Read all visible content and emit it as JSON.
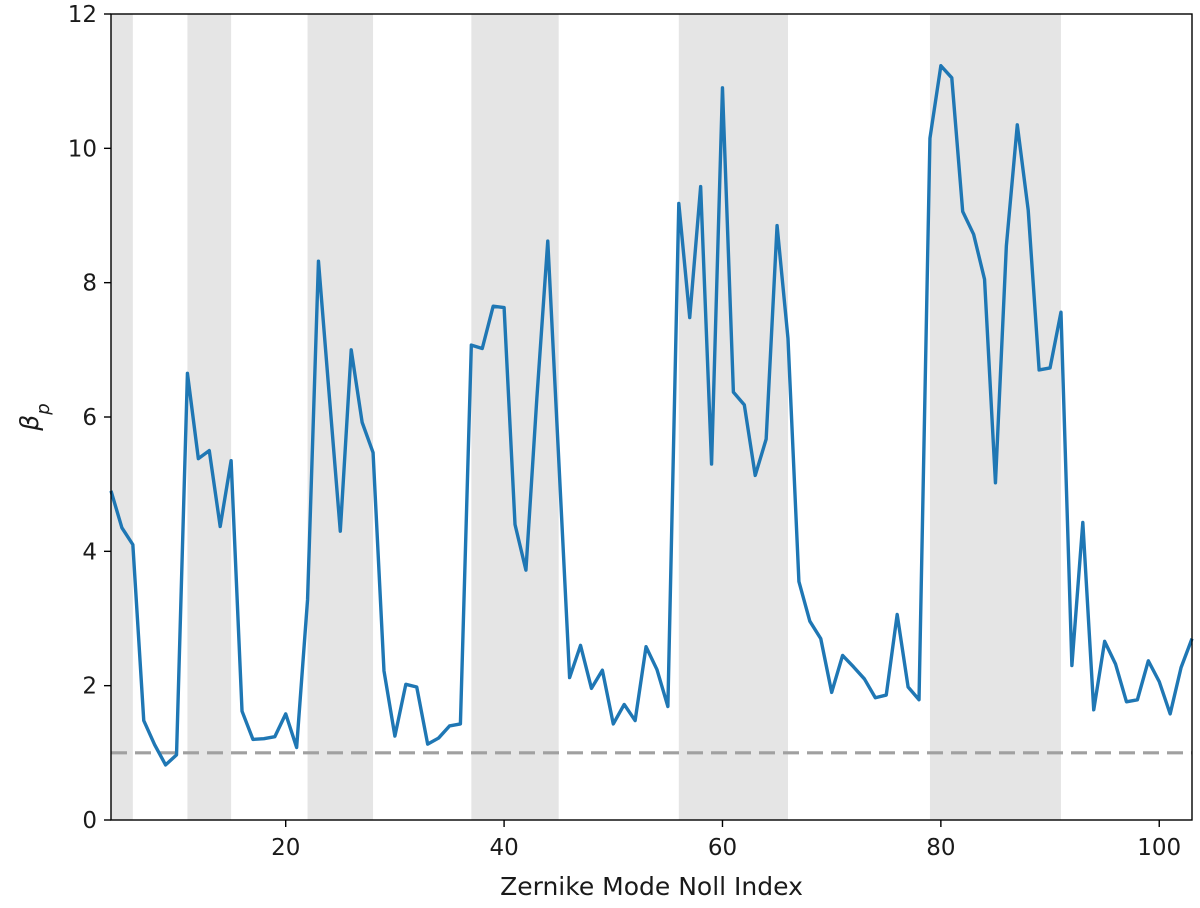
{
  "chart_data": {
    "type": "line",
    "xlabel": "Zernike Mode Noll Index",
    "ylabel": "β",
    "ylabel_subscript": "p",
    "xlim": [
      4,
      103
    ],
    "ylim": [
      0,
      12
    ],
    "xticks": [
      20,
      40,
      60,
      80,
      100
    ],
    "yticks": [
      0,
      2,
      4,
      6,
      8,
      10,
      12
    ],
    "grid": false,
    "reference_line": {
      "y": 1,
      "style": "dashed",
      "color": "#a0a0a0"
    },
    "shaded_x_ranges": [
      [
        4,
        6
      ],
      [
        11,
        15
      ],
      [
        22,
        28
      ],
      [
        37,
        45
      ],
      [
        56,
        66
      ],
      [
        79,
        91
      ]
    ],
    "shade_color": "#e5e5e5",
    "series": [
      {
        "color": "#1f77b4",
        "x": [
          4,
          5,
          6,
          7,
          8,
          9,
          10,
          11,
          12,
          13,
          14,
          15,
          16,
          17,
          18,
          19,
          20,
          21,
          22,
          23,
          24,
          25,
          26,
          27,
          28,
          29,
          30,
          31,
          32,
          33,
          34,
          35,
          36,
          37,
          38,
          39,
          40,
          41,
          42,
          43,
          44,
          45,
          46,
          47,
          48,
          49,
          50,
          51,
          52,
          53,
          54,
          55,
          56,
          57,
          58,
          59,
          60,
          61,
          62,
          63,
          64,
          65,
          66,
          67,
          68,
          69,
          70,
          71,
          72,
          73,
          74,
          75,
          76,
          77,
          78,
          79,
          80,
          81,
          82,
          83,
          84,
          85,
          86,
          87,
          88,
          89,
          90,
          91,
          92,
          93,
          94,
          95,
          96,
          97,
          98,
          99,
          100,
          101,
          102,
          103
        ],
        "values": [
          4.9,
          4.35,
          4.1,
          1.48,
          1.12,
          0.82,
          0.97,
          6.65,
          5.38,
          5.5,
          4.37,
          5.35,
          1.62,
          1.2,
          1.21,
          1.24,
          1.58,
          1.08,
          3.28,
          8.32,
          6.3,
          4.3,
          7.0,
          5.92,
          5.47,
          2.22,
          1.25,
          2.02,
          1.98,
          1.13,
          1.22,
          1.4,
          1.43,
          7.07,
          7.02,
          7.65,
          7.63,
          4.4,
          3.72,
          6.28,
          8.62,
          5.38,
          2.12,
          2.6,
          1.96,
          2.23,
          1.43,
          1.72,
          1.48,
          2.58,
          2.24,
          1.69,
          9.18,
          7.48,
          9.43,
          5.3,
          10.9,
          6.37,
          6.18,
          5.13,
          5.67,
          8.85,
          7.17,
          3.55,
          2.96,
          2.7,
          1.9,
          2.45,
          2.28,
          2.1,
          1.82,
          1.86,
          3.06,
          1.98,
          1.79,
          10.15,
          11.23,
          11.05,
          9.06,
          8.72,
          8.05,
          5.02,
          8.55,
          10.35,
          9.08,
          6.7,
          6.73,
          7.56,
          2.3,
          4.43,
          1.64,
          2.66,
          2.32,
          1.76,
          1.79,
          2.37,
          2.06,
          1.58,
          2.27,
          2.7
        ]
      }
    ]
  }
}
